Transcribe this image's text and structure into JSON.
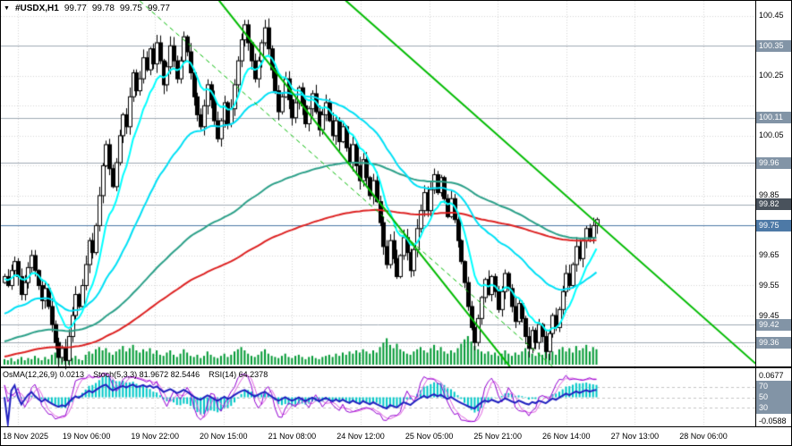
{
  "header": {
    "symbol_period": "#USDX,H1",
    "open": "99.77",
    "high": "99.78",
    "low": "99.75",
    "close": "99.77"
  },
  "indicator_panel": {
    "items": [
      {
        "label": "OsMA(12,26,9) 0.0213"
      },
      {
        "label": "Stoch(5,3,3) 81.9672 82.5446"
      },
      {
        "label": "RSI(14) 64.2378"
      }
    ],
    "scale_max": "0.0677",
    "scale_min": "-0.0588"
  },
  "price_axis": {
    "items": [
      {
        "label": "100.45",
        "price": 100.45,
        "style": "plain"
      },
      {
        "label": "100.35",
        "price": 100.35,
        "style": "badge"
      },
      {
        "label": "100.25",
        "price": 100.25,
        "style": "plain"
      },
      {
        "label": "100.11",
        "price": 100.11,
        "style": "badge"
      },
      {
        "label": "100.05",
        "price": 100.05,
        "style": "plain"
      },
      {
        "label": "99.96",
        "price": 99.96,
        "style": "badge"
      },
      {
        "label": "99.85",
        "price": 99.85,
        "style": "plain"
      },
      {
        "label": "99.82",
        "price": 99.82,
        "style": "badge-dark"
      },
      {
        "label": "99.75",
        "price": 99.75,
        "style": "badge-blue"
      },
      {
        "label": "99.65",
        "price": 99.65,
        "style": "plain"
      },
      {
        "label": "99.55",
        "price": 99.55,
        "style": "plain"
      },
      {
        "label": "99.45",
        "price": 99.45,
        "style": "plain"
      },
      {
        "label": "99.42",
        "price": 99.42,
        "style": "badge"
      },
      {
        "label": "99.36",
        "price": 99.36,
        "style": "badge"
      }
    ]
  },
  "indicator_axis": {
    "items": [
      {
        "label": "0.0677",
        "style": "plain",
        "anchor": "top"
      },
      {
        "label": "70",
        "value": 70,
        "style": "badge"
      },
      {
        "label": "50",
        "value": 50,
        "style": "badge"
      },
      {
        "label": "30",
        "value": 30,
        "style": "badge"
      },
      {
        "label": "-0.0588",
        "style": "plain",
        "anchor": "bottom"
      }
    ]
  },
  "time_axis": {
    "labels": [
      "18 Nov 2025",
      "19 Nov 06:00",
      "19 Nov 22:00",
      "20 Nov 15:00",
      "21 Nov 08:00",
      "24 Nov 12:00",
      "25 Nov 05:00",
      "25 Nov 21:00",
      "26 Nov 14:00",
      "27 Nov 13:00",
      "28 Nov 06:00"
    ]
  },
  "theme": {
    "background": "#FFFFFF",
    "grid": "#D6D6D6",
    "bull": "#FFFFFF",
    "bear": "#000000",
    "outline": "#000000",
    "volume": "#009933",
    "level_line": "#A0AAB4",
    "trend_line": "#00BB00",
    "badge_bg": "#8294A6",
    "badge_dark": "#49525C",
    "badge_blue": "#4D79A6",
    "osma": "#00C8C8",
    "stoch_k": "#9400D3",
    "stoch_d": "#E060E0",
    "rsi": "#2020C0"
  },
  "chart_data": {
    "type": "candlestick",
    "title": "#USDX,H1",
    "symbol": "#USDX",
    "timeframe": "H1",
    "last_quote": {
      "open": 99.77,
      "high": 99.78,
      "low": 99.75,
      "close": 99.77
    },
    "price_range": [
      99.28,
      100.5
    ],
    "series": {
      "closes": [
        99.58,
        99.55,
        99.6,
        99.63,
        99.58,
        99.52,
        99.56,
        99.61,
        99.65,
        99.6,
        99.55,
        99.5,
        99.54,
        99.48,
        99.42,
        99.36,
        99.31,
        99.34,
        99.3,
        99.38,
        99.45,
        99.52,
        99.48,
        99.55,
        99.62,
        99.7,
        99.66,
        99.75,
        99.85,
        99.95,
        100.02,
        99.94,
        99.88,
        99.96,
        100.05,
        100.12,
        100.08,
        100.18,
        100.26,
        100.2,
        100.24,
        100.31,
        100.27,
        100.34,
        100.29,
        100.36,
        100.3,
        100.22,
        100.28,
        100.35,
        100.3,
        100.24,
        100.3,
        100.38,
        100.33,
        100.26,
        100.18,
        100.12,
        100.08,
        100.15,
        100.22,
        100.17,
        100.1,
        100.04,
        100.1,
        100.16,
        100.09,
        100.14,
        100.22,
        100.3,
        100.37,
        100.42,
        100.36,
        100.3,
        100.24,
        100.3,
        100.36,
        100.41,
        100.34,
        100.27,
        100.2,
        100.13,
        100.18,
        100.24,
        100.17,
        100.11,
        100.16,
        100.21,
        100.15,
        100.09,
        100.14,
        100.19,
        100.13,
        100.07,
        100.12,
        100.16,
        100.1,
        100.05,
        100.1,
        100.03,
        100.08,
        100.01,
        99.96,
        100.02,
        99.95,
        99.9,
        99.97,
        99.91,
        99.85,
        99.9,
        99.83,
        99.76,
        99.68,
        99.62,
        99.7,
        99.64,
        99.58,
        99.65,
        99.71,
        99.66,
        99.6,
        99.67,
        99.74,
        99.8,
        99.86,
        99.8,
        99.87,
        99.92,
        99.86,
        99.91,
        99.84,
        99.78,
        99.84,
        99.77,
        99.7,
        99.63,
        99.56,
        99.48,
        99.41,
        99.36,
        99.44,
        99.51,
        99.57,
        99.52,
        99.58,
        99.53,
        99.47,
        99.53,
        99.59,
        99.54,
        99.48,
        99.43,
        99.49,
        99.44,
        99.38,
        99.34,
        99.4,
        99.36,
        99.42,
        99.38,
        99.33,
        99.39,
        99.45,
        99.41,
        99.47,
        99.53,
        99.59,
        99.55,
        99.62,
        99.68,
        99.64,
        99.7,
        99.74,
        99.71,
        99.75,
        99.77
      ],
      "volumes": [
        5,
        4,
        6,
        3,
        5,
        7,
        4,
        6,
        5,
        8,
        6,
        4,
        7,
        5,
        9,
        11,
        8,
        6,
        7,
        5,
        6,
        8,
        5,
        4,
        9,
        12,
        10,
        14,
        16,
        13,
        15,
        11,
        9,
        12,
        14,
        17,
        12,
        15,
        18,
        13,
        11,
        14,
        12,
        15,
        10,
        13,
        9,
        8,
        11,
        13,
        9,
        7,
        10,
        14,
        11,
        8,
        7,
        9,
        6,
        8,
        12,
        9,
        7,
        6,
        8,
        10,
        7,
        9,
        12,
        14,
        16,
        13,
        10,
        8,
        7,
        9,
        12,
        14,
        10,
        8,
        7,
        6,
        8,
        10,
        7,
        6,
        8,
        9,
        7,
        5,
        7,
        8,
        6,
        5,
        7,
        8,
        9,
        7,
        10,
        8,
        11,
        9,
        12,
        10,
        13,
        11,
        14,
        12,
        10,
        13,
        11,
        16,
        20,
        24,
        18,
        15,
        19,
        14,
        12,
        10,
        9,
        12,
        14,
        16,
        13,
        11,
        15,
        18,
        13,
        16,
        12,
        10,
        13,
        11,
        15,
        19,
        23,
        26,
        21,
        17,
        14,
        12,
        10,
        12,
        9,
        11,
        8,
        10,
        13,
        10,
        8,
        11,
        9,
        12,
        15,
        12,
        10,
        8,
        11,
        9,
        13,
        10,
        12,
        9,
        14,
        16,
        12,
        15,
        11,
        17,
        13,
        15,
        18,
        12,
        16,
        14
      ]
    },
    "moving_averages": [
      {
        "name": "ema-fast",
        "period": 10,
        "init": 99.57,
        "color": "#00FFFF",
        "width": 2
      },
      {
        "name": "ema-mid",
        "period": 40,
        "init": 99.45,
        "color": "#00E0F5",
        "width": 2
      },
      {
        "name": "ema-slow-teal",
        "period": 120,
        "init": 99.36,
        "color": "#2CA089",
        "width": 2
      },
      {
        "name": "ema-slow-red",
        "period": 200,
        "init": 99.31,
        "color": "#DD2222",
        "width": 2
      }
    ],
    "levels": [
      100.35,
      100.11,
      99.96,
      99.82,
      99.42,
      99.36
    ],
    "bid_line": 99.75,
    "trendlines": [
      {
        "x1": 60,
        "p1": 100.55,
        "x2": 155,
        "p2": 99.2,
        "dash": false
      },
      {
        "x1": 96,
        "p1": 100.55,
        "x2": 226,
        "p2": 99.25,
        "dash": false
      },
      {
        "x1": 40,
        "p1": 100.5,
        "x2": 185,
        "p2": 99.05,
        "dash": true
      }
    ],
    "indicators": [
      {
        "name": "OsMA",
        "params": [
          12,
          26,
          9
        ],
        "current": 0.0213
      },
      {
        "name": "Stochastic",
        "params": [
          5,
          3,
          3
        ],
        "current_k": 81.9672,
        "current_d": 82.5446
      },
      {
        "name": "RSI",
        "params": [
          14
        ],
        "current": 64.2378
      }
    ],
    "indicator_levels": [
      70,
      50,
      30
    ],
    "indicator_scale": [
      -0.0588,
      0.0677
    ]
  }
}
